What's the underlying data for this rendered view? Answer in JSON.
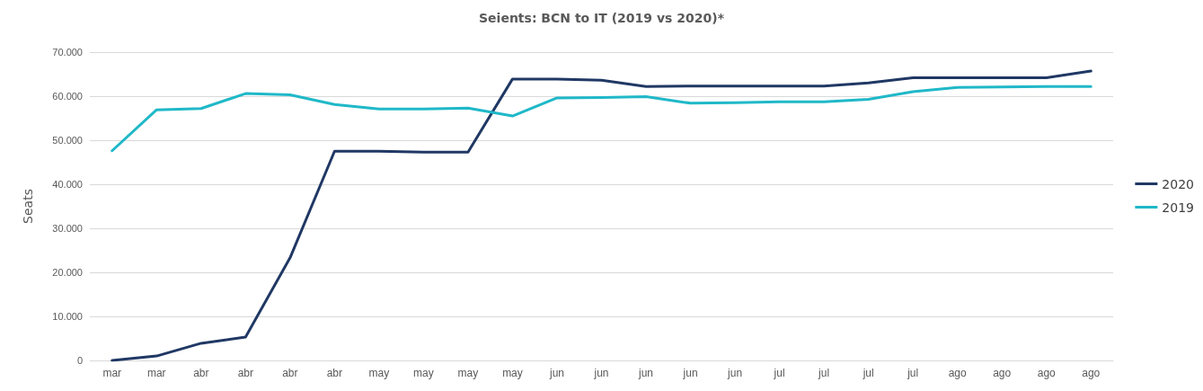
{
  "chart_data": {
    "type": "line",
    "title": "Seients: BCN to IT (2019 vs 2020)*",
    "ylabel": "Seats",
    "categories": [
      "mar",
      "mar",
      "abr",
      "abr",
      "abr",
      "abr",
      "may",
      "may",
      "may",
      "may",
      "jun",
      "jun",
      "jun",
      "jun",
      "jun",
      "jul",
      "jul",
      "jul",
      "jul",
      "ago",
      "ago",
      "ago",
      "ago"
    ],
    "series": [
      {
        "name": "2020",
        "color": "#203864",
        "values": [
          0,
          1000,
          3900,
          5300,
          23300,
          47500,
          47500,
          47300,
          47300,
          63900,
          63900,
          63600,
          62200,
          62300,
          62300,
          62300,
          62300,
          63000,
          64200,
          64200,
          64200,
          64200,
          65700
        ]
      },
      {
        "name": "2019",
        "color": "#1fb8c8",
        "values": [
          47600,
          56900,
          57200,
          60600,
          60300,
          58100,
          57100,
          57100,
          57300,
          55500,
          59600,
          59700,
          59900,
          58400,
          58500,
          58700,
          58700,
          59300,
          61000,
          62000,
          62100,
          62200,
          62200
        ]
      }
    ],
    "ylim": [
      0,
      70000
    ],
    "yticks": [
      {
        "value": 0,
        "label": "0"
      },
      {
        "value": 10000,
        "label": "10.000"
      },
      {
        "value": 20000,
        "label": "20.000"
      },
      {
        "value": 30000,
        "label": "30.000"
      },
      {
        "value": 40000,
        "label": "40.000"
      },
      {
        "value": 50000,
        "label": "50.000"
      },
      {
        "value": 60000,
        "label": "60.000"
      },
      {
        "value": 70000,
        "label": "70.000"
      }
    ],
    "grid": "y",
    "legend": "right",
    "marker": "none",
    "line_style": "solid"
  }
}
